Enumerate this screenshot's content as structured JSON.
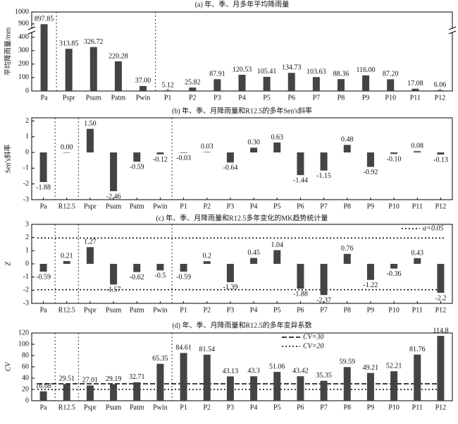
{
  "chart_data": [
    {
      "type": "bar",
      "title": "(a) 年、季、月多年平均降雨量",
      "y_label": "平均降雨量/mm",
      "color": "#444444",
      "categories": [
        "Pa",
        "Pspr",
        "Psum",
        "Patm",
        "Pwin",
        "P1",
        "P2",
        "P3",
        "P4",
        "P5",
        "P6",
        "P7",
        "P8",
        "P9",
        "P10",
        "P11",
        "P12"
      ],
      "values": [
        897.85,
        313.85,
        326.72,
        220.28,
        37,
        5.12,
        25.82,
        87.91,
        120.53,
        105.41,
        134.73,
        103.63,
        88.36,
        116,
        87.2,
        17.08,
        6.06
      ],
      "value_labels": [
        "897.85",
        "313.85",
        "326.72",
        "220.28",
        "37.00",
        "5.12",
        "25.82",
        "87.91",
        "120.53",
        "105.41",
        "134.73",
        "103.63",
        "88.36",
        "116.00",
        "87.20",
        "17.08",
        "6.06"
      ],
      "ylim": [
        0,
        1000
      ],
      "ybreak": [
        430,
        870
      ],
      "yticks": [
        0,
        100,
        200,
        300,
        400,
        900,
        1000
      ]
    },
    {
      "type": "bar",
      "title": "(b) 年、季、月降雨量和R12.5的多年Sen's斜率",
      "y_label": "Sen's斜率",
      "color": "#444444",
      "categories": [
        "Pa",
        "R12.5",
        "Pspr",
        "Psum",
        "Patm",
        "Pwin",
        "P1",
        "P2",
        "P3",
        "P4",
        "P5",
        "P6",
        "P7",
        "P8",
        "P9",
        "P10",
        "P11",
        "P12"
      ],
      "values": [
        -1.88,
        0,
        1.5,
        -2.46,
        -0.59,
        -0.12,
        -0.03,
        0.03,
        -0.64,
        0.3,
        0.63,
        -1.44,
        -1.15,
        0.48,
        -0.92,
        -0.1,
        0.08,
        -0.13
      ],
      "value_labels": [
        "-1.88",
        "0.00",
        "1.50",
        "-2.46",
        "-0.59",
        "-0.12",
        "-0.03",
        "0.03",
        "-0.64",
        "0.30",
        "0.63",
        "-1.44",
        "-1.15",
        "0.48",
        "-0.92",
        "-0.10",
        "0.08",
        "-0.13"
      ],
      "ylim": [
        -3,
        2.2
      ],
      "yticks": [
        -3,
        -2,
        -1,
        0,
        1,
        2
      ]
    },
    {
      "type": "bar",
      "title": "(c) 年、季、月降雨量和R12.5多年变化的MK趋势统计量",
      "y_label": "Z",
      "color": "#444444",
      "categories": [
        "Pa",
        "R12.5",
        "Pspr",
        "Psum",
        "Patm",
        "Pwin",
        "P1",
        "P2",
        "P3",
        "P4",
        "P5",
        "P6",
        "P7",
        "P8",
        "P9",
        "P10",
        "P11",
        "P12"
      ],
      "values": [
        -0.59,
        0.21,
        1.27,
        -1.57,
        -0.62,
        -0.5,
        -0.59,
        0.2,
        -1.39,
        0.45,
        1.04,
        -1.88,
        -2.37,
        0.76,
        -1.22,
        -0.36,
        0.43,
        -2.2
      ],
      "ylim": [
        -3,
        3
      ],
      "yticks": [
        -3,
        -2,
        -1,
        0,
        1,
        2,
        3
      ],
      "reference_lines": [
        {
          "name": "α=0.05",
          "values": [
            1.96,
            -1.96
          ],
          "style": "dotted"
        }
      ]
    },
    {
      "type": "bar",
      "title": "(d) 年、季、月降雨量和R12.5的多年变异系数",
      "y_label": "CV",
      "color": "#444444",
      "categories": [
        "Pa",
        "R12.5",
        "Pspr",
        "Psum",
        "Patm",
        "Pwin",
        "P1",
        "P2",
        "P3",
        "P4",
        "P5",
        "P6",
        "P7",
        "P8",
        "P9",
        "P10",
        "P11",
        "P12"
      ],
      "values": [
        16.68,
        29.51,
        27.01,
        29.19,
        32.71,
        65.35,
        84.61,
        81.54,
        43.13,
        43.3,
        51.06,
        43.42,
        35.35,
        59.59,
        49.21,
        52.21,
        81.76,
        114.8
      ],
      "ylim": [
        0,
        120
      ],
      "yticks": [
        0,
        20,
        40,
        60,
        80,
        100,
        120
      ],
      "reference_lines": [
        {
          "name": "CV=30",
          "values": [
            30
          ],
          "style": "dashed"
        },
        {
          "name": "CV=20",
          "values": [
            20
          ],
          "style": "dotted"
        }
      ]
    }
  ]
}
